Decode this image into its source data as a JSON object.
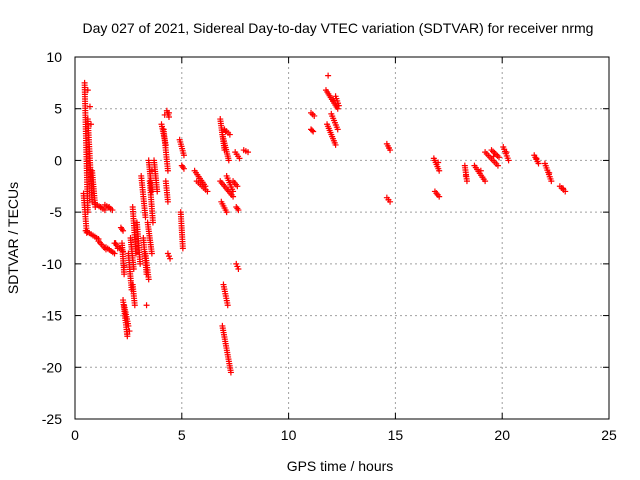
{
  "chart_data": {
    "type": "scatter",
    "title": "Day 027 of 2021, Sidereal Day-to-day VTEC variation (SDTVAR) for receiver nrmg",
    "xlabel": "GPS time / hours",
    "ylabel": "SDTVAR / TECUs",
    "xlim": [
      0,
      25
    ],
    "ylim": [
      -25,
      10
    ],
    "xticks": [
      0,
      5,
      10,
      15,
      20,
      25
    ],
    "yticks": [
      -25,
      -20,
      -15,
      -10,
      -5,
      0,
      5,
      10
    ],
    "grid": true,
    "marker": "+",
    "color": "#ff0000",
    "segments": [
      [
        0.4,
        0.55,
        -3.2,
        -7.0
      ],
      [
        0.45,
        0.6,
        7.5,
        -5.0
      ],
      [
        0.6,
        0.8,
        4.0,
        -4.0
      ],
      [
        0.8,
        0.95,
        -1.0,
        -4.5
      ],
      [
        0.95,
        1.4,
        -4.2,
        -4.8
      ],
      [
        1.4,
        1.75,
        -4.3,
        -4.8
      ],
      [
        0.5,
        1.1,
        -6.8,
        -7.6
      ],
      [
        1.1,
        1.45,
        -7.8,
        -8.6
      ],
      [
        1.45,
        1.85,
        -8.4,
        -9.0
      ],
      [
        1.85,
        2.25,
        -8.0,
        -8.8
      ],
      [
        2.15,
        2.25,
        -6.5,
        -6.8
      ],
      [
        2.2,
        2.3,
        -8.0,
        -11.0
      ],
      [
        2.25,
        2.45,
        -13.5,
        -17.0
      ],
      [
        2.3,
        2.5,
        -14.0,
        -16.0
      ],
      [
        2.5,
        2.65,
        -9.0,
        -12.5
      ],
      [
        2.6,
        2.75,
        -7.5,
        -10.5
      ],
      [
        2.7,
        2.85,
        -4.5,
        -9.0
      ],
      [
        2.7,
        2.8,
        -12.0,
        -14.0
      ],
      [
        2.9,
        3.05,
        -6.0,
        -10.0
      ],
      [
        3.1,
        3.3,
        -1.5,
        -5.5
      ],
      [
        3.2,
        3.35,
        -7.5,
        -11.0
      ],
      [
        3.3,
        3.45,
        -9.0,
        -11.5
      ],
      [
        3.4,
        3.6,
        -6.0,
        -9.0
      ],
      [
        3.45,
        3.6,
        0.0,
        -3.0
      ],
      [
        3.5,
        3.65,
        -2.0,
        -6.0
      ],
      [
        3.7,
        3.85,
        0.0,
        -3.0
      ],
      [
        4.05,
        4.25,
        3.5,
        1.5
      ],
      [
        4.15,
        4.35,
        3.0,
        -1.0
      ],
      [
        4.25,
        4.35,
        -2.0,
        -4.0
      ],
      [
        4.3,
        4.4,
        4.8,
        4.2
      ],
      [
        4.35,
        4.45,
        -9.0,
        -9.5
      ],
      [
        4.9,
        5.1,
        2.0,
        0.5
      ],
      [
        4.95,
        5.05,
        -5.0,
        -8.5
      ],
      [
        5.0,
        5.1,
        -0.5,
        -0.8
      ],
      [
        5.6,
        6.1,
        -1.0,
        -2.5
      ],
      [
        5.7,
        6.2,
        -2.0,
        -3.0
      ],
      [
        6.8,
        7.0,
        4.0,
        1.0
      ],
      [
        6.9,
        7.2,
        2.5,
        0.0
      ],
      [
        6.8,
        7.4,
        -2.0,
        -3.5
      ],
      [
        6.85,
        7.1,
        -4.0,
        -5.0
      ],
      [
        6.95,
        7.15,
        -12.0,
        -14.0
      ],
      [
        6.9,
        7.3,
        -16.0,
        -20.5
      ],
      [
        7.0,
        7.25,
        3.0,
        2.5
      ],
      [
        7.1,
        7.4,
        -1.5,
        -3.0
      ],
      [
        7.4,
        7.6,
        -2.0,
        -2.5
      ],
      [
        7.5,
        7.7,
        0.8,
        0.2
      ],
      [
        7.55,
        7.65,
        -4.5,
        -4.8
      ],
      [
        7.55,
        7.65,
        -10.0,
        -10.5
      ],
      [
        7.9,
        8.1,
        1.0,
        0.8
      ],
      [
        11.05,
        11.2,
        4.6,
        4.3
      ],
      [
        11.05,
        11.15,
        3.0,
        2.8
      ],
      [
        11.75,
        12.3,
        6.8,
        5.0
      ],
      [
        11.8,
        12.2,
        3.5,
        1.5
      ],
      [
        12.0,
        12.3,
        4.5,
        3.0
      ],
      [
        12.2,
        12.35,
        6.2,
        5.3
      ],
      [
        14.6,
        14.75,
        1.6,
        1.0
      ],
      [
        14.6,
        14.75,
        -3.6,
        -4.0
      ],
      [
        16.8,
        17.05,
        0.2,
        -1.0
      ],
      [
        16.85,
        17.05,
        -3.0,
        -3.5
      ],
      [
        18.25,
        18.35,
        -0.5,
        -2.0
      ],
      [
        18.7,
        19.2,
        -0.5,
        -2.0
      ],
      [
        19.2,
        19.8,
        0.8,
        -0.5
      ],
      [
        19.5,
        19.85,
        1.0,
        0.3
      ],
      [
        20.05,
        20.3,
        1.3,
        0.0
      ],
      [
        21.5,
        21.7,
        0.5,
        -0.3
      ],
      [
        22.0,
        22.3,
        -0.3,
        -2.0
      ],
      [
        22.7,
        22.95,
        -2.5,
        -3.0
      ]
    ],
    "points": [
      [
        0.6,
        6.8
      ],
      [
        0.7,
        5.2
      ],
      [
        0.75,
        3.5
      ],
      [
        1.2,
        -4.5
      ],
      [
        1.6,
        -4.5
      ],
      [
        1.9,
        -8.0
      ],
      [
        2.0,
        -8.5
      ],
      [
        2.3,
        -10.2
      ],
      [
        2.45,
        -16.8
      ],
      [
        2.55,
        -16.5
      ],
      [
        3.35,
        -14.0
      ],
      [
        3.6,
        -1.0
      ],
      [
        4.2,
        4.4
      ],
      [
        4.4,
        4.6
      ],
      [
        7.05,
        2.8
      ],
      [
        11.85,
        8.2
      ],
      [
        12.1,
        5.8
      ],
      [
        14.7,
        1.2
      ],
      [
        17.0,
        -0.2
      ],
      [
        18.3,
        -1.5
      ],
      [
        19.0,
        -1.0
      ],
      [
        19.6,
        0.4
      ],
      [
        20.2,
        0.8
      ],
      [
        21.6,
        0.2
      ],
      [
        22.2,
        -1.2
      ],
      [
        22.85,
        -2.7
      ]
    ]
  }
}
